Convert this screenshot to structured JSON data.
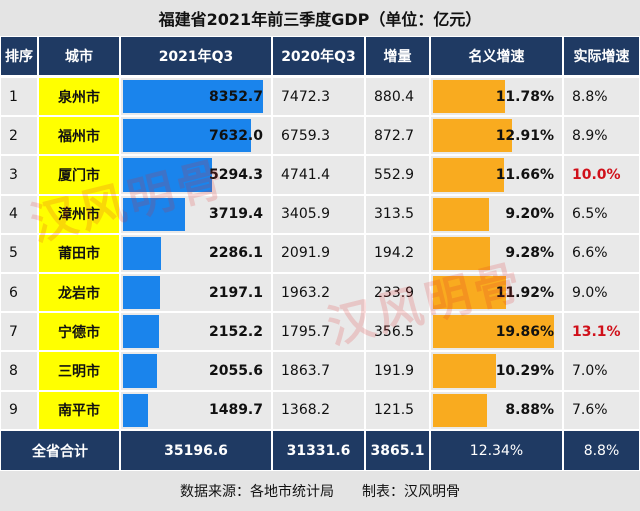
{
  "title": "福建省2021年前三季度GDP（单位：亿元）",
  "table": {
    "headers": [
      "排序",
      "城市",
      "2021年Q3",
      "2020年Q3",
      "增量",
      "名义增速",
      "实际增速"
    ],
    "rows": [
      [
        1,
        "泉州市",
        8352.7,
        7472.3,
        880.4,
        {
          "value": 11.78,
          "label": "11.78%"
        },
        {
          "value": 8.8,
          "label": "8.8%"
        }
      ],
      [
        2,
        "福州市",
        {
          "value": 7632.0,
          "label": "7632.0"
        },
        6759.3,
        872.7,
        {
          "value": 12.91,
          "label": "12.91%"
        },
        {
          "value": 8.9,
          "label": "8.9%"
        }
      ],
      [
        3,
        "厦门市",
        5294.3,
        4741.4,
        552.9,
        {
          "value": 11.66,
          "label": "11.66%"
        },
        {
          "value": 10.0,
          "label": "10.0%",
          "color": "#d0101a"
        }
      ],
      [
        4,
        "漳州市",
        3719.4,
        3405.9,
        313.5,
        {
          "value": 9.2,
          "label": "9.20%"
        },
        {
          "value": 6.5,
          "label": "6.5%"
        }
      ],
      [
        5,
        "莆田市",
        2286.1,
        2091.9,
        194.2,
        {
          "value": 9.28,
          "label": "9.28%"
        },
        {
          "value": 6.6,
          "label": "6.6%"
        }
      ],
      [
        6,
        "龙岩市",
        2197.1,
        1963.2,
        233.9,
        {
          "value": 11.92,
          "label": "11.92%"
        },
        {
          "value": 9.0,
          "label": "9.0%"
        }
      ],
      [
        7,
        "宁德市",
        2152.2,
        1795.7,
        356.5,
        {
          "value": 19.86,
          "label": "19.86%"
        },
        {
          "value": 13.1,
          "label": "13.1%",
          "color": "#d0101a"
        }
      ],
      [
        8,
        "三明市",
        2055.6,
        1863.7,
        191.9,
        {
          "value": 10.29,
          "label": "10.29%"
        },
        {
          "value": 7.0,
          "label": "7.0%"
        }
      ],
      [
        9,
        "南平市",
        1489.7,
        1368.2,
        121.5,
        {
          "value": 8.88,
          "label": "8.88%"
        },
        {
          "value": 7.6,
          "label": "7.6%"
        }
      ]
    ],
    "total": [
      "全省合计",
      35196.6,
      31331.6,
      3865.1,
      {
        "value": 12.34,
        "label": "12.34%"
      },
      {
        "value": 8.8,
        "label": "8.8%"
      }
    ]
  },
  "bar_colors": {
    "2": "#1a84ec",
    "5": "#f9ab1f"
  },
  "footer": {
    "source": "数据来源：各地市统计局",
    "author": "制表：汉风明骨"
  },
  "watermark": "汉风明骨"
}
